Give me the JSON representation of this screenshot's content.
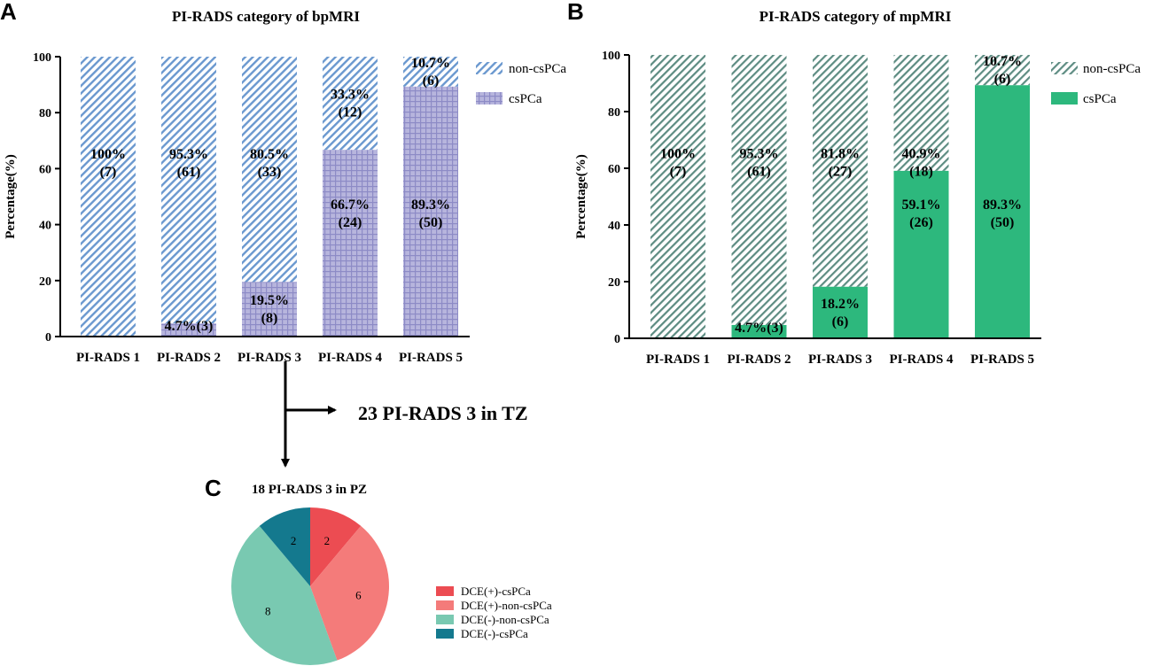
{
  "panel_letters": [
    "A",
    "B",
    "C"
  ],
  "flow": {
    "tz_label": "23 PI-RADS 3 in TZ"
  },
  "colors": {
    "bp_noncs_stripe": "#6a98cf",
    "bp_cs_fill": "#b7b5dd",
    "bp_cs_grid": "#8d8bc6",
    "mp_noncs_stripe": "#5d8c82",
    "mp_cs_fill": "#2db87d",
    "pie_dce_pos_cs": "#ec4c52",
    "pie_dce_pos_noncs": "#f47b7a",
    "pie_dce_neg_noncs": "#79c9b1",
    "pie_dce_neg_cs": "#14798e"
  },
  "chart_data": [
    {
      "type": "bar",
      "stacked": true,
      "title": "PI-RADS category of bpMRI",
      "xlabel": "",
      "ylabel": "Percentage(%)",
      "ylim": [
        0,
        100
      ],
      "yticks": [
        0,
        20,
        40,
        60,
        80,
        100
      ],
      "categories": [
        "PI-RADS 1",
        "PI-RADS 2",
        "PI-RADS 3",
        "PI-RADS 4",
        "PI-RADS 5"
      ],
      "legend": [
        "non-csPCa",
        "csPCa"
      ],
      "series": [
        {
          "name": "csPCa",
          "values": [
            0,
            4.7,
            19.5,
            66.7,
            89.3
          ],
          "labels": [
            "",
            "4.7%(3)",
            "19.5%\n(8)",
            "66.7%\n(24)",
            "89.3%\n(50)"
          ]
        },
        {
          "name": "non-csPCa",
          "values": [
            100,
            95.3,
            80.5,
            33.3,
            10.7
          ],
          "labels": [
            "100%\n(7)",
            "95.3%\n(61)",
            "80.5%\n(33)",
            "33.3%\n(12)",
            "10.7%\n(6)"
          ]
        }
      ]
    },
    {
      "type": "bar",
      "stacked": true,
      "title": "PI-RADS category of mpMRI",
      "xlabel": "",
      "ylabel": "Percentage(%)",
      "ylim": [
        0,
        100
      ],
      "yticks": [
        0,
        20,
        40,
        60,
        80,
        100
      ],
      "categories": [
        "PI-RADS 1",
        "PI-RADS 2",
        "PI-RADS 3",
        "PI-RADS 4",
        "PI-RADS 5"
      ],
      "legend": [
        "non-csPCa",
        "csPCa"
      ],
      "series": [
        {
          "name": "csPCa",
          "values": [
            0,
            4.7,
            18.2,
            59.1,
            89.3
          ],
          "labels": [
            "",
            "4.7%(3)",
            "18.2%\n(6)",
            "59.1%\n(26)",
            "89.3%\n(50)"
          ]
        },
        {
          "name": "non-csPCa",
          "values": [
            100,
            95.3,
            81.8,
            40.9,
            10.7
          ],
          "labels": [
            "100%\n(7)",
            "95.3%\n(61)",
            "81.8%\n(27)",
            "40.9%\n(18)",
            "10.7%\n(6)"
          ]
        }
      ]
    },
    {
      "type": "pie",
      "title": "18 PI-RADS 3 in PZ",
      "slices": [
        {
          "label": "DCE(+)-csPCa",
          "value": 2
        },
        {
          "label": "DCE(+)-non-csPCa",
          "value": 6
        },
        {
          "label": "DCE(-)-non-csPCa",
          "value": 8
        },
        {
          "label": "DCE(-)-csPCa",
          "value": 2
        }
      ]
    }
  ]
}
